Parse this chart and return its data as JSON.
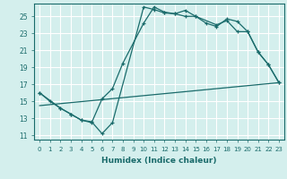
{
  "xlabel": "Humidex (Indice chaleur)",
  "bg_color": "#d4efed",
  "grid_color": "#ffffff",
  "line_color": "#1a6b6b",
  "xlim": [
    -0.5,
    23.5
  ],
  "ylim": [
    10.5,
    26.5
  ],
  "xticks": [
    0,
    1,
    2,
    3,
    4,
    5,
    6,
    7,
    8,
    9,
    10,
    11,
    12,
    13,
    14,
    15,
    16,
    17,
    18,
    19,
    20,
    21,
    22,
    23
  ],
  "yticks": [
    11,
    13,
    15,
    17,
    19,
    21,
    23,
    25
  ],
  "line1_x": [
    0,
    1,
    2,
    3,
    4,
    5,
    6,
    7,
    10,
    11,
    12,
    13,
    14,
    15,
    16,
    17,
    18,
    19,
    20,
    21,
    22,
    23
  ],
  "line1_y": [
    16.0,
    15.0,
    14.2,
    13.5,
    12.8,
    12.6,
    11.2,
    12.5,
    26.1,
    25.8,
    25.4,
    25.3,
    25.7,
    25.0,
    24.2,
    23.8,
    24.7,
    24.4,
    23.2,
    20.8,
    19.3,
    17.2
  ],
  "line2_x": [
    0,
    2,
    3,
    4,
    5,
    6,
    7,
    8,
    10,
    11,
    12,
    13,
    14,
    15,
    17,
    18,
    19,
    20,
    21,
    22,
    23
  ],
  "line2_y": [
    16.0,
    14.2,
    13.5,
    12.8,
    12.5,
    15.3,
    16.5,
    19.5,
    24.2,
    26.1,
    25.5,
    25.3,
    25.0,
    25.0,
    24.0,
    24.5,
    23.2,
    23.2,
    20.8,
    19.3,
    17.2
  ],
  "line3_x": [
    0,
    23
  ],
  "line3_y": [
    14.5,
    17.2
  ]
}
